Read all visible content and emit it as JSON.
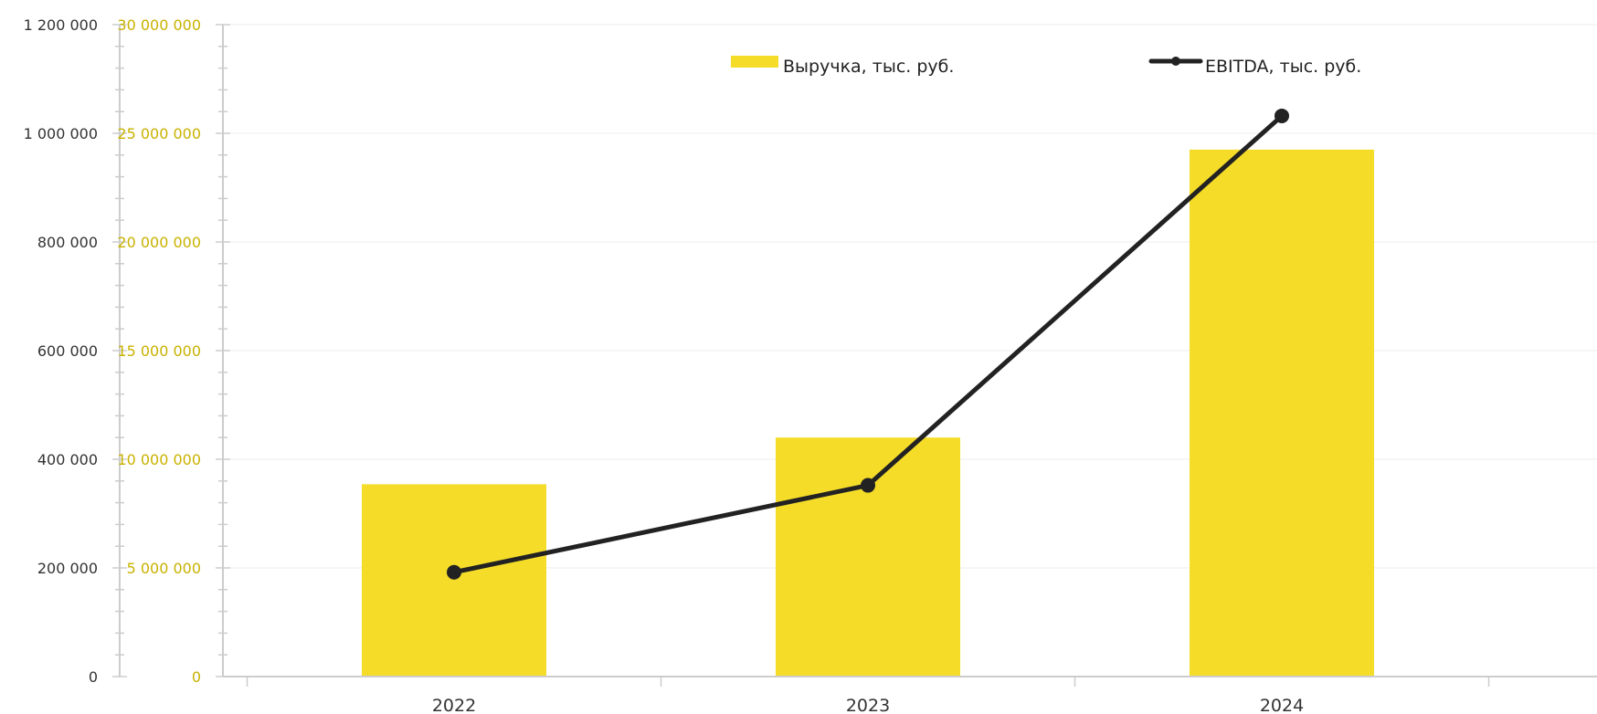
{
  "chart_data": {
    "type": "bar",
    "categories": [
      "2022",
      "2023",
      "2024"
    ],
    "series": [
      {
        "name": "Выручка, тыс. руб.",
        "type": "bar",
        "axis": "secondary",
        "color": "#f5dc28",
        "values": [
          8850000,
          11000000,
          24250000
        ]
      },
      {
        "name": "EBITDA, тыс. руб.",
        "type": "line",
        "axis": "primary",
        "color": "#222222",
        "values": [
          192000,
          352000,
          1032000
        ]
      }
    ],
    "left_axis": {
      "ylim": [
        0,
        1200000
      ],
      "ticks": [
        0,
        200000,
        400000,
        600000,
        800000,
        1000000,
        1200000
      ],
      "tick_labels": [
        "0",
        "200 000",
        "400 000",
        "600 000",
        "800 000",
        "1 000 000",
        "1 200 000"
      ],
      "color": "#333333"
    },
    "right_axis": {
      "ylim": [
        0,
        30000000
      ],
      "ticks": [
        0,
        5000000,
        10000000,
        15000000,
        20000000,
        25000000,
        30000000
      ],
      "tick_labels": [
        "0",
        "5 000 000",
        "10 000 000",
        "15 000 000",
        "20 000 000",
        "25 000 000",
        "30 000 000"
      ],
      "color": "#c9b100"
    },
    "grid": true,
    "legend": "top-center",
    "title": "",
    "xlabel": "",
    "ylabel": ""
  }
}
